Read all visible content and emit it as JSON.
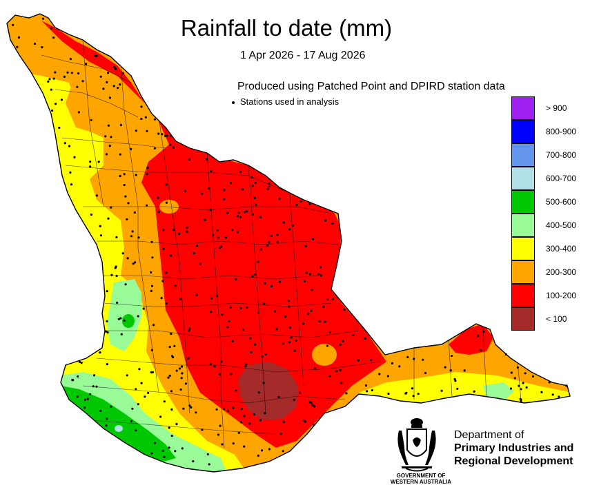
{
  "header": {
    "title": "Rainfall to date (mm)",
    "date_range": "1 Apr 2026 - 17 Aug 2026",
    "produced_by": "Produced using Patched Point and DPIRD station data",
    "stations_label": "Stations used in analysis"
  },
  "legend": {
    "items": [
      {
        "label": "> 900",
        "color": "#a020f0"
      },
      {
        "label": "800-900",
        "color": "#0000ff"
      },
      {
        "label": "700-800",
        "color": "#6495ed"
      },
      {
        "label": "600-700",
        "color": "#b0e0e6"
      },
      {
        "label": "500-600",
        "color": "#00c800"
      },
      {
        "label": "400-500",
        "color": "#98fb98"
      },
      {
        "label": "300-400",
        "color": "#ffff00"
      },
      {
        "label": "200-300",
        "color": "#ffa500"
      },
      {
        "label": "100-200",
        "color": "#ff0000"
      },
      {
        "label": "< 100",
        "color": "#a52a2a"
      }
    ]
  },
  "footer": {
    "department_line1": "Department of",
    "department_line2": "Primary Industries and",
    "department_line3": "Regional Development",
    "government_line1": "GOVERNMENT OF",
    "government_line2": "WESTERN AUSTRALIA"
  },
  "colors": {
    "background": "#ffffff",
    "boundary": "#000000",
    "station_dot": "#000000"
  }
}
